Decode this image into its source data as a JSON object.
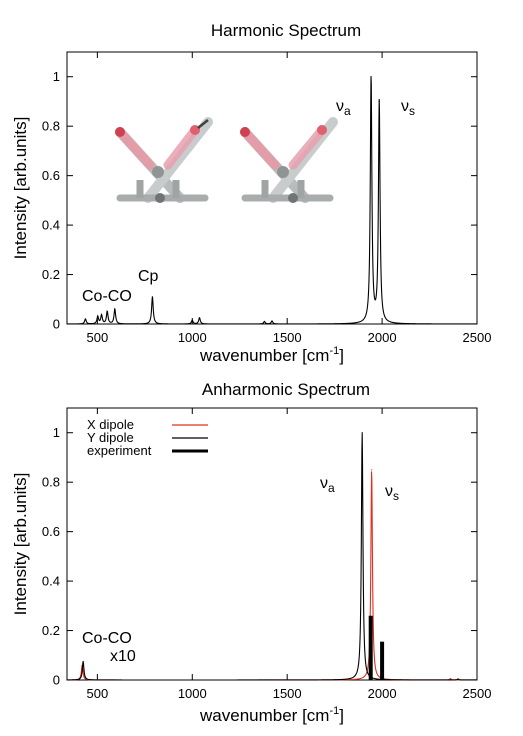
{
  "chart_data": [
    {
      "type": "line",
      "title": "Harmonic Spectrum",
      "xlabel": "wavenumber [cm-1]",
      "xlabel_main": "wavenumber [cm",
      "xlabel_sup": "-1",
      "xlabel_end": "]",
      "ylabel": "Intensity [arb.units]",
      "xlim": [
        340,
        2500
      ],
      "ylim": [
        0,
        1.1
      ],
      "x_ticks": [
        "500",
        "1000",
        "1500",
        "2000",
        "2500"
      ],
      "y_ticks": [
        "0",
        "0.2",
        "0.4",
        "0.6",
        "0.8",
        "1"
      ],
      "grid": false,
      "annotations": {
        "co": "Co-CO",
        "cp": "Cp",
        "nua": "ν",
        "nua_sub": "a",
        "nus": "ν",
        "nus_sub": "s"
      },
      "series": [
        {
          "color": "#000000",
          "peaks": [
            {
              "x": 437,
              "y": 0.02
            },
            {
              "x": 502,
              "y": 0.03
            },
            {
              "x": 522,
              "y": 0.035
            },
            {
              "x": 552,
              "y": 0.05
            },
            {
              "x": 592,
              "y": 0.06
            },
            {
              "x": 790,
              "y": 0.11
            },
            {
              "x": 1000,
              "y": 0.015
            },
            {
              "x": 1038,
              "y": 0.025
            },
            {
              "x": 1380,
              "y": 0.01
            },
            {
              "x": 1420,
              "y": 0.012
            },
            {
              "x": 1942,
              "y": 1.0
            },
            {
              "x": 1985,
              "y": 0.9
            }
          ]
        }
      ]
    },
    {
      "type": "line",
      "title": "Anharmonic Spectrum",
      "xlabel": "wavenumber [cm-1]",
      "xlabel_main": "wavenumber [cm",
      "xlabel_sup": "-1",
      "xlabel_end": "]",
      "ylabel": "Intensity [arb.units]",
      "xlim": [
        340,
        2500
      ],
      "ylim": [
        0,
        1.1
      ],
      "x_ticks": [
        "500",
        "1000",
        "1500",
        "2000",
        "2500"
      ],
      "y_ticks": [
        "0",
        "0.2",
        "0.4",
        "0.6",
        "0.8",
        "1"
      ],
      "grid": false,
      "legend_position": "top-left",
      "annotations": {
        "co": "Co-CO",
        "x10": "x10",
        "nua": "ν",
        "nua_sub": "a",
        "nus": "ν",
        "nus_sub": "s"
      },
      "series": [
        {
          "name": "X dipole",
          "color": "#e03020",
          "peaks": [
            {
              "x": 420,
              "y": 0.06
            },
            {
              "x": 1945,
              "y": 0.85
            },
            {
              "x": 2360,
              "y": 0.005
            }
          ]
        },
        {
          "name": "Y dipole",
          "color": "#000000",
          "peaks": [
            {
              "x": 425,
              "y": 0.075
            },
            {
              "x": 1895,
              "y": 1.0
            },
            {
              "x": 2400,
              "y": 0.004
            }
          ]
        },
        {
          "name": "experiment",
          "color": "#000000",
          "sticks": [
            {
              "x": 1940,
              "y": 0.26
            },
            {
              "x": 2000,
              "y": 0.155
            }
          ]
        }
      ]
    }
  ]
}
